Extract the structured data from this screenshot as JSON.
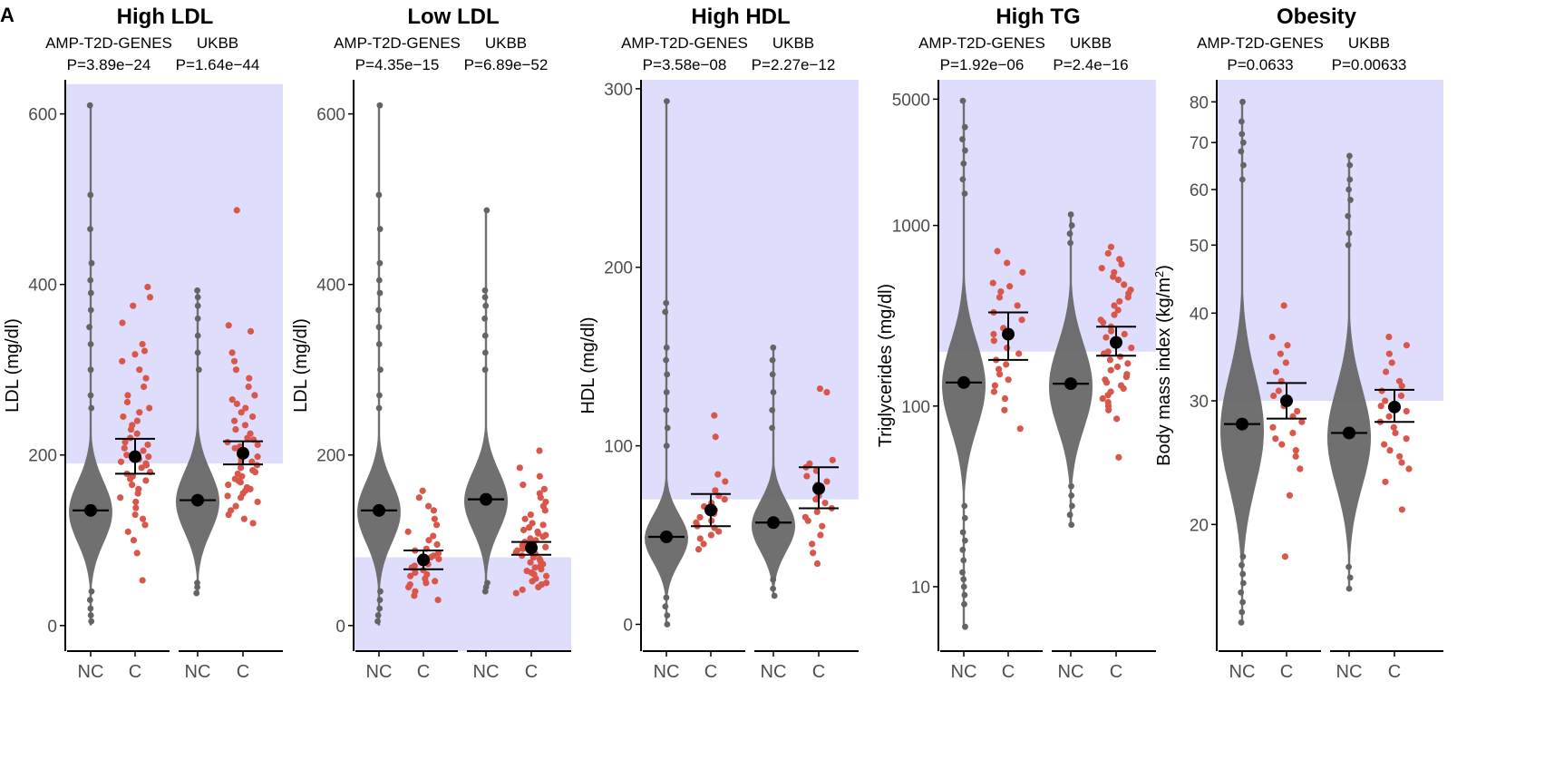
{
  "figure": {
    "panel_label": "A"
  },
  "colors": {
    "shade": "#dedefc",
    "violin": "#646464",
    "noncarrier_points": "#646464",
    "carrier_points": "#d9564a",
    "mean_marker": "#000000",
    "axis": "#000000",
    "tick_text": "#4d4d4d"
  },
  "chart_data": [
    {
      "type": "violin",
      "title": "High LDL",
      "ylabel": "LDL (mg/dl)",
      "yscale": "linear",
      "ylim": [
        -30,
        640
      ],
      "yticks": [
        0,
        200,
        400,
        600
      ],
      "ytick_labels": [
        "0",
        "200",
        "400",
        "600"
      ],
      "shaded_range": [
        190,
        635
      ],
      "groups": [
        {
          "study": "AMP-T2D-GENES",
          "pvalue": "P=3.89e−24",
          "noncarriers": {
            "label": "NC",
            "mean": 135,
            "median": 133,
            "q1": 110,
            "q3": 158,
            "min": 0,
            "max": 610,
            "outliers": [
              5,
              12,
              20,
              30,
              40,
              255,
              270,
              300,
              330,
              350,
              370,
              390,
              405,
              425,
              465,
              505,
              610
            ]
          },
          "carriers": {
            "label": "C",
            "mean": 198,
            "ci": [
              178,
              219
            ],
            "points": [
              53,
              85,
              100,
              110,
              118,
              125,
              130,
              138,
              145,
              150,
              155,
              160,
              165,
              170,
              172,
              175,
              178,
              180,
              185,
              188,
              190,
              192,
              195,
              198,
              200,
              205,
              208,
              212,
              215,
              220,
              225,
              230,
              235,
              240,
              245,
              250,
              255,
              262,
              270,
              280,
              290,
              300,
              310,
              318,
              322,
              330,
              355,
              375,
              385,
              397
            ]
          }
        },
        {
          "study": "UKBB",
          "pvalue": "P=1.64e−44",
          "noncarriers": {
            "label": "NC",
            "mean": 147,
            "median": 145,
            "q1": 122,
            "q3": 170,
            "min": 38,
            "max": 393,
            "outliers": [
              38,
              45,
              50,
              300,
              320,
              340,
              360,
              375,
              385,
              393
            ]
          },
          "carriers": {
            "label": "C",
            "mean": 202,
            "ci": [
              189,
              216
            ],
            "points": [
              120,
              125,
              130,
              135,
              140,
              145,
              150,
              152,
              155,
              158,
              160,
              162,
              165,
              168,
              170,
              172,
              175,
              178,
              180,
              182,
              185,
              188,
              190,
              192,
              195,
              198,
              200,
              202,
              205,
              208,
              210,
              212,
              215,
              218,
              220,
              225,
              230,
              235,
              240,
              245,
              250,
              255,
              260,
              265,
              270,
              280,
              290,
              300,
              310,
              320,
              345,
              352,
              487
            ]
          }
        }
      ]
    },
    {
      "type": "violin",
      "title": "Low LDL",
      "ylabel": "LDL (mg/dl)",
      "yscale": "linear",
      "ylim": [
        -30,
        640
      ],
      "yticks": [
        0,
        200,
        400,
        600
      ],
      "ytick_labels": [
        "0",
        "200",
        "400",
        "600"
      ],
      "shaded_range": [
        -30,
        80
      ],
      "groups": [
        {
          "study": "AMP-T2D-GENES",
          "pvalue": "P=4.35e−15",
          "noncarriers": {
            "label": "NC",
            "mean": 135,
            "median": 133,
            "q1": 110,
            "q3": 158,
            "min": 0,
            "max": 610,
            "outliers": [
              5,
              12,
              20,
              30,
              40,
              255,
              270,
              300,
              330,
              350,
              370,
              390,
              405,
              425,
              465,
              505,
              610
            ]
          },
          "carriers": {
            "label": "C",
            "mean": 77,
            "ci": [
              66,
              88
            ],
            "points": [
              30,
              35,
              40,
              45,
              48,
              50,
              52,
              55,
              58,
              60,
              62,
              65,
              68,
              70,
              72,
              75,
              78,
              80,
              82,
              85,
              88,
              90,
              95,
              100,
              105,
              110,
              118,
              125,
              135,
              140,
              150,
              158
            ]
          }
        },
        {
          "study": "UKBB",
          "pvalue": "P=6.89e−52",
          "noncarriers": {
            "label": "NC",
            "mean": 148,
            "median": 146,
            "q1": 123,
            "q3": 170,
            "min": 40,
            "max": 487,
            "outliers": [
              40,
              45,
              50,
              300,
              320,
              340,
              360,
              375,
              385,
              393,
              487
            ]
          },
          "carriers": {
            "label": "C",
            "mean": 91,
            "ci": [
              83,
              98
            ],
            "points": [
              38,
              42,
              45,
              48,
              50,
              52,
              55,
              58,
              60,
              62,
              64,
              66,
              68,
              70,
              72,
              74,
              76,
              78,
              80,
              82,
              84,
              86,
              88,
              90,
              92,
              94,
              96,
              98,
              100,
              102,
              104,
              106,
              108,
              110,
              112,
              115,
              118,
              120,
              125,
              130,
              135,
              140,
              145,
              150,
              155,
              160,
              165,
              175,
              185,
              205
            ]
          }
        }
      ]
    },
    {
      "type": "violin",
      "title": "High HDL",
      "ylabel": "HDL (mg/dl)",
      "yscale": "linear",
      "ylim": [
        -15,
        305
      ],
      "yticks": [
        0,
        100,
        200,
        300
      ],
      "ytick_labels": [
        "0",
        "100",
        "200",
        "300"
      ],
      "shaded_range": [
        70,
        305
      ],
      "groups": [
        {
          "study": "AMP-T2D-GENES",
          "pvalue": "P=3.58e−08",
          "noncarriers": {
            "label": "NC",
            "mean": 49,
            "median": 48,
            "q1": 40,
            "q3": 58,
            "min": 0,
            "max": 293,
            "outliers": [
              0,
              5,
              10,
              15,
              100,
              110,
              120,
              130,
              140,
              148,
              155,
              175,
              180,
              293
            ]
          },
          "carriers": {
            "label": "C",
            "mean": 64,
            "ci": [
              55,
              73
            ],
            "points": [
              42,
              45,
              48,
              50,
              52,
              54,
              55,
              57,
              58,
              60,
              62,
              64,
              66,
              68,
              70,
              72,
              75,
              80,
              84,
              105,
              117
            ]
          }
        },
        {
          "study": "UKBB",
          "pvalue": "P=2.27e−12",
          "noncarriers": {
            "label": "NC",
            "mean": 57,
            "median": 55,
            "q1": 47,
            "q3": 66,
            "min": 16,
            "max": 155,
            "outliers": [
              16,
              20,
              25,
              110,
              120,
              130,
              140,
              148,
              155
            ]
          },
          "carriers": {
            "label": "C",
            "mean": 76,
            "ci": [
              65,
              88
            ],
            "points": [
              34,
              40,
              45,
              50,
              55,
              58,
              60,
              63,
              65,
              68,
              70,
              72,
              75,
              78,
              80,
              83,
              86,
              88,
              90,
              92,
              130,
              132
            ]
          }
        }
      ]
    },
    {
      "type": "violin",
      "title": "High TG",
      "ylabel": "Triglycerides (mg/dl)",
      "yscale": "log10",
      "ylim": [
        4.4,
        6400
      ],
      "yticks": [
        10,
        100,
        1000,
        5000
      ],
      "ytick_labels": [
        "10",
        "100",
        "1000",
        "5000"
      ],
      "shaded_range": [
        200,
        6400
      ],
      "groups": [
        {
          "study": "AMP-T2D-GENES",
          "pvalue": "P=1.92e−06",
          "noncarriers": {
            "label": "NC",
            "mean": 135,
            "median": 130,
            "q1": 90,
            "q3": 190,
            "min": 6,
            "max": 4900,
            "outliers": [
              6,
              8,
              9,
              10,
              11,
              12,
              14,
              16,
              18,
              20,
              24,
              28,
              1500,
              1800,
              2200,
              2600,
              3000,
              3500,
              4900
            ]
          },
          "carriers": {
            "label": "C",
            "mean": 250,
            "ci": [
              180,
              330
            ],
            "points": [
              75,
              95,
              110,
              120,
              130,
              140,
              150,
              160,
              170,
              180,
              195,
              210,
              230,
              250,
              270,
              300,
              330,
              360,
              400,
              430,
              460,
              480,
              550,
              620,
              720
            ]
          }
        },
        {
          "study": "UKBB",
          "pvalue": "P=2.4e−16",
          "noncarriers": {
            "label": "NC",
            "mean": 133,
            "median": 128,
            "q1": 90,
            "q3": 185,
            "min": 22,
            "max": 1150,
            "outliers": [
              22,
              25,
              28,
              32,
              36,
              800,
              900,
              1000,
              1150
            ]
          },
          "carriers": {
            "label": "C",
            "mean": 225,
            "ci": [
              190,
              275
            ],
            "points": [
              52,
              85,
              95,
              100,
              105,
              110,
              115,
              120,
              125,
              130,
              135,
              140,
              145,
              150,
              158,
              165,
              172,
              180,
              188,
              195,
              200,
              210,
              220,
              230,
              240,
              250,
              260,
              275,
              290,
              300,
              320,
              340,
              360,
              380,
              400,
              420,
              440,
              470,
              500,
              520,
              550,
              580,
              610,
              650,
              700,
              760
            ]
          }
        }
      ]
    },
    {
      "type": "violin",
      "title": "Obesity",
      "ylabel": "Body mass index (kg/m²)",
      "ylabel_parts": [
        "Body mass index (kg/m",
        "2",
        ")"
      ],
      "yscale": "log10",
      "ylim": [
        13.2,
        86
      ],
      "yticks": [
        20,
        30,
        40,
        50,
        60,
        70,
        80
      ],
      "ytick_labels": [
        "20",
        "30",
        "40",
        "50",
        "60",
        "70",
        "80"
      ],
      "shaded_range": [
        30,
        86
      ],
      "groups": [
        {
          "study": "AMP-T2D-GENES",
          "pvalue": "P=0.0633",
          "noncarriers": {
            "label": "NC",
            "mean": 27.8,
            "median": 27.2,
            "q1": 24.2,
            "q3": 31.0,
            "min": 14.5,
            "max": 80,
            "outliers": [
              14.5,
              15,
              15.5,
              16,
              16.5,
              17,
              17.5,
              18,
              62,
              65,
              68,
              70,
              72,
              75,
              80
            ]
          },
          "carriers": {
            "label": "C",
            "mean": 30.0,
            "ci": [
              28.3,
              31.8
            ],
            "points": [
              18,
              22,
              24,
              25,
              25.5,
              26,
              26.5,
              27,
              27.5,
              28,
              28.5,
              29,
              29.5,
              30,
              30.5,
              31,
              32,
              33,
              34,
              35,
              36,
              37,
              41
            ]
          }
        },
        {
          "study": "UKBB",
          "pvalue": "P=0.00633",
          "noncarriers": {
            "label": "NC",
            "mean": 27.0,
            "median": 26.6,
            "q1": 24.0,
            "q3": 29.8,
            "min": 16.2,
            "max": 67,
            "outliers": [
              16.2,
              16.8,
              17.4,
              50,
              52,
              55,
              58,
              60,
              62,
              65,
              67
            ]
          },
          "carriers": {
            "label": "C",
            "mean": 29.4,
            "ci": [
              28.0,
              31.1
            ],
            "points": [
              21,
              23,
              24,
              24.5,
              25,
              25.5,
              26,
              26.5,
              27,
              27.5,
              28,
              28.5,
              29,
              29.5,
              30,
              30.5,
              31,
              31.5,
              32,
              33,
              34,
              35,
              36,
              37
            ]
          }
        }
      ]
    }
  ]
}
